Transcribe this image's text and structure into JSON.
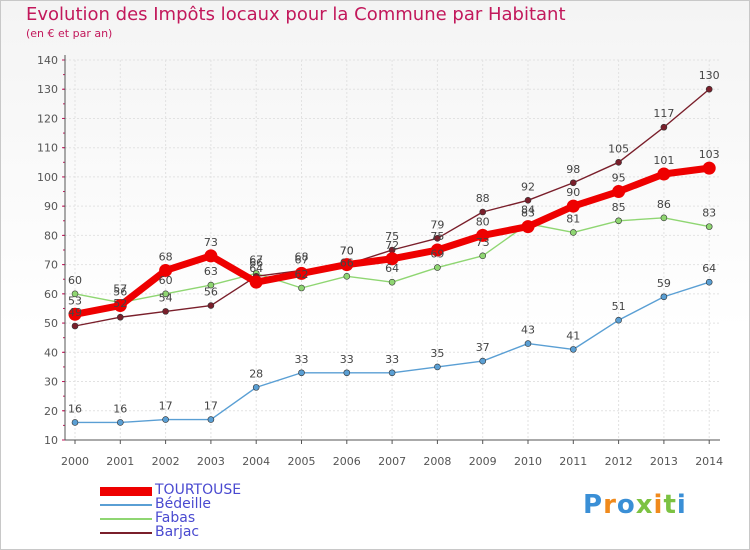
{
  "header": {
    "title": "Evolution des Impôts locaux pour la Commune par Habitant",
    "subtitle": "(en € et par an)"
  },
  "logo": {
    "text": "Proxiti"
  },
  "chart_data": {
    "type": "line",
    "title": "Evolution des Impôts locaux pour la Commune par Habitant",
    "subtitle": "(en € et par an)",
    "xlabel": "",
    "ylabel": "",
    "ylim": [
      10,
      140
    ],
    "yticks": [
      "10",
      "20",
      "30",
      "40",
      "50",
      "60",
      "70",
      "80",
      "90",
      "100",
      "110",
      "120",
      "130",
      "140"
    ],
    "categories": [
      "2000",
      "2001",
      "2002",
      "2003",
      "2004",
      "2005",
      "2006",
      "2007",
      "2008",
      "2009",
      "2010",
      "2011",
      "2012",
      "2013",
      "2014"
    ],
    "grid": true,
    "legend_position": "bottom-left",
    "series": [
      {
        "name": "Bédeille",
        "color": "#5a9fd4",
        "values": [
          16,
          16,
          17,
          17,
          28,
          33,
          33,
          33,
          35,
          37,
          43,
          41,
          51,
          59,
          64
        ]
      },
      {
        "name": "Fabas",
        "color": "#8fd672",
        "values": [
          60,
          57,
          60,
          63,
          67,
          62,
          66,
          64,
          69,
          73,
          84,
          81,
          85,
          86,
          83
        ]
      },
      {
        "name": "Barjac",
        "color": "#7a1f2b",
        "values": [
          49,
          52,
          54,
          56,
          66,
          68,
          70,
          75,
          79,
          88,
          92,
          98,
          105,
          117,
          130
        ]
      },
      {
        "name": "TOURTOUSE",
        "color": "#ee0000",
        "values": [
          53,
          56,
          68,
          73,
          64,
          67,
          70,
          72,
          75,
          80,
          83,
          90,
          95,
          101,
          103
        ]
      }
    ],
    "legend_order": [
      "TOURTOUSE",
      "Bédeille",
      "Fabas",
      "Barjac"
    ]
  }
}
